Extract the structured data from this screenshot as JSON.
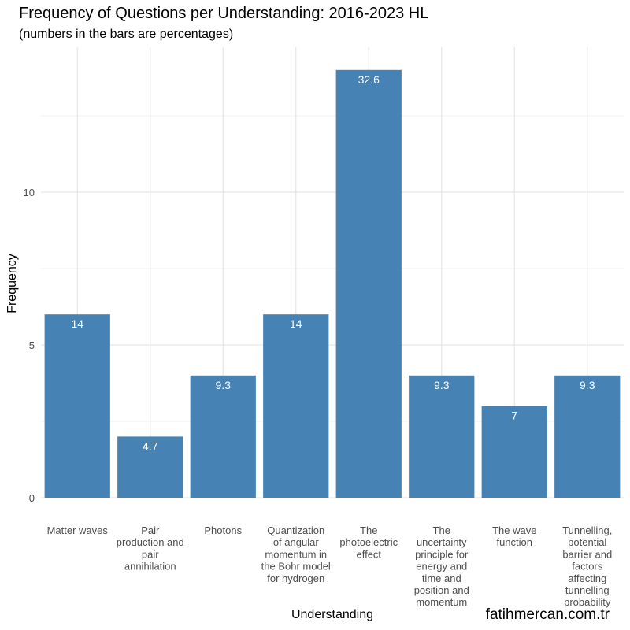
{
  "chart_data": {
    "type": "bar",
    "title": "Frequency of Questions per Understanding: 2016-2023 HL",
    "subtitle": "(numbers in the bars are percentages)",
    "xlabel": "Understanding",
    "ylabel": "Frequency",
    "ylim": [
      0,
      14.6
    ],
    "yticks": [
      0,
      5,
      10
    ],
    "grid": true,
    "bar_color": "#4682B4",
    "categories": [
      "Matter waves",
      "Pair production and pair annihilation",
      "Photons",
      "Quantization of angular momentum in the Bohr model for hydrogen",
      "The photoelectric effect",
      "The uncertainty principle for energy and time and position and momentum",
      "The wave function",
      "Tunnelling, potential barrier and factors affecting tunnelling probability"
    ],
    "category_tick_lines": [
      [
        "Matter waves"
      ],
      [
        "Pair",
        "production and",
        "pair",
        "annihilation"
      ],
      [
        "Photons"
      ],
      [
        "Quantization",
        "of angular",
        "momentum in",
        "the Bohr model",
        "for hydrogen"
      ],
      [
        "The",
        "photoelectric",
        "effect"
      ],
      [
        "The",
        "uncertainty",
        "principle for",
        "energy and",
        "time and",
        "position and",
        "momentum"
      ],
      [
        "The wave",
        "function"
      ],
      [
        "Tunnelling,",
        "potential",
        "barrier and",
        "factors",
        "affecting",
        "tunnelling",
        "probability"
      ]
    ],
    "values": [
      6,
      2,
      4,
      6,
      14,
      4,
      3,
      4
    ],
    "bar_labels": [
      "14",
      "4.7",
      "9.3",
      "14",
      "32.6",
      "9.3",
      "7",
      "9.3"
    ]
  },
  "credit": "fatihmercan.com.tr"
}
